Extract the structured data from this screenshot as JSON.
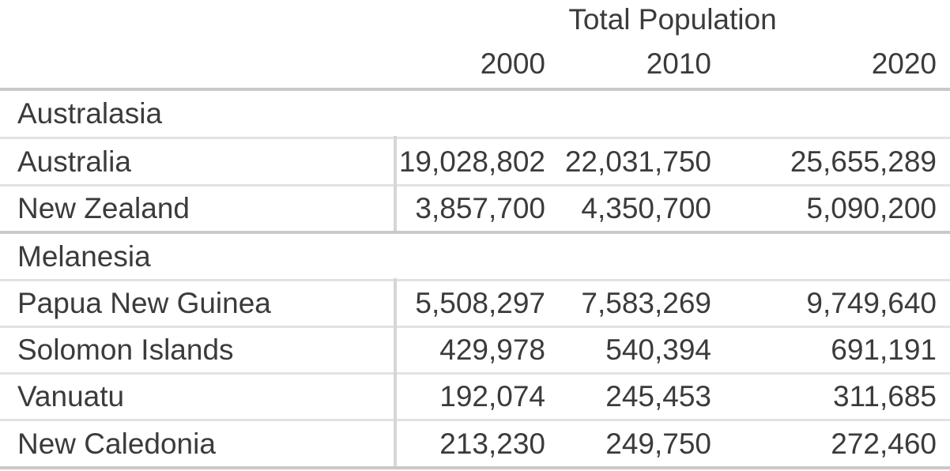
{
  "chart_data": {
    "type": "table",
    "title": "Total Population",
    "year_headers": [
      "2000",
      "2010",
      "2020"
    ],
    "groups": [
      {
        "label": "Australasia",
        "rows": [
          {
            "name": "Australia",
            "values": [
              "19,028,802",
              "22,031,750",
              "25,655,289"
            ]
          },
          {
            "name": "New Zealand",
            "values": [
              "3,857,700",
              "4,350,700",
              "5,090,200"
            ]
          }
        ]
      },
      {
        "label": "Melanesia",
        "rows": [
          {
            "name": "Papua New Guinea",
            "values": [
              "5,508,297",
              "7,583,269",
              "9,749,640"
            ]
          },
          {
            "name": "Solomon Islands",
            "values": [
              "429,978",
              "540,394",
              "691,191"
            ]
          },
          {
            "name": "Vanuatu",
            "values": [
              "192,074",
              "245,453",
              "311,685"
            ]
          },
          {
            "name": "New Caledonia",
            "values": [
              "213,230",
              "249,750",
              "272,460"
            ]
          }
        ]
      }
    ],
    "layout": {
      "value_alignment": "right",
      "grid": "horizontal-lines-with-left-column-divider",
      "legend_position": "none"
    }
  },
  "colors": {
    "text": "#3b3b3b",
    "border_strong": "#c9c9c9",
    "border_light": "#e2e2e2",
    "divider": "#d6d6d6",
    "background": "#ffffff"
  }
}
